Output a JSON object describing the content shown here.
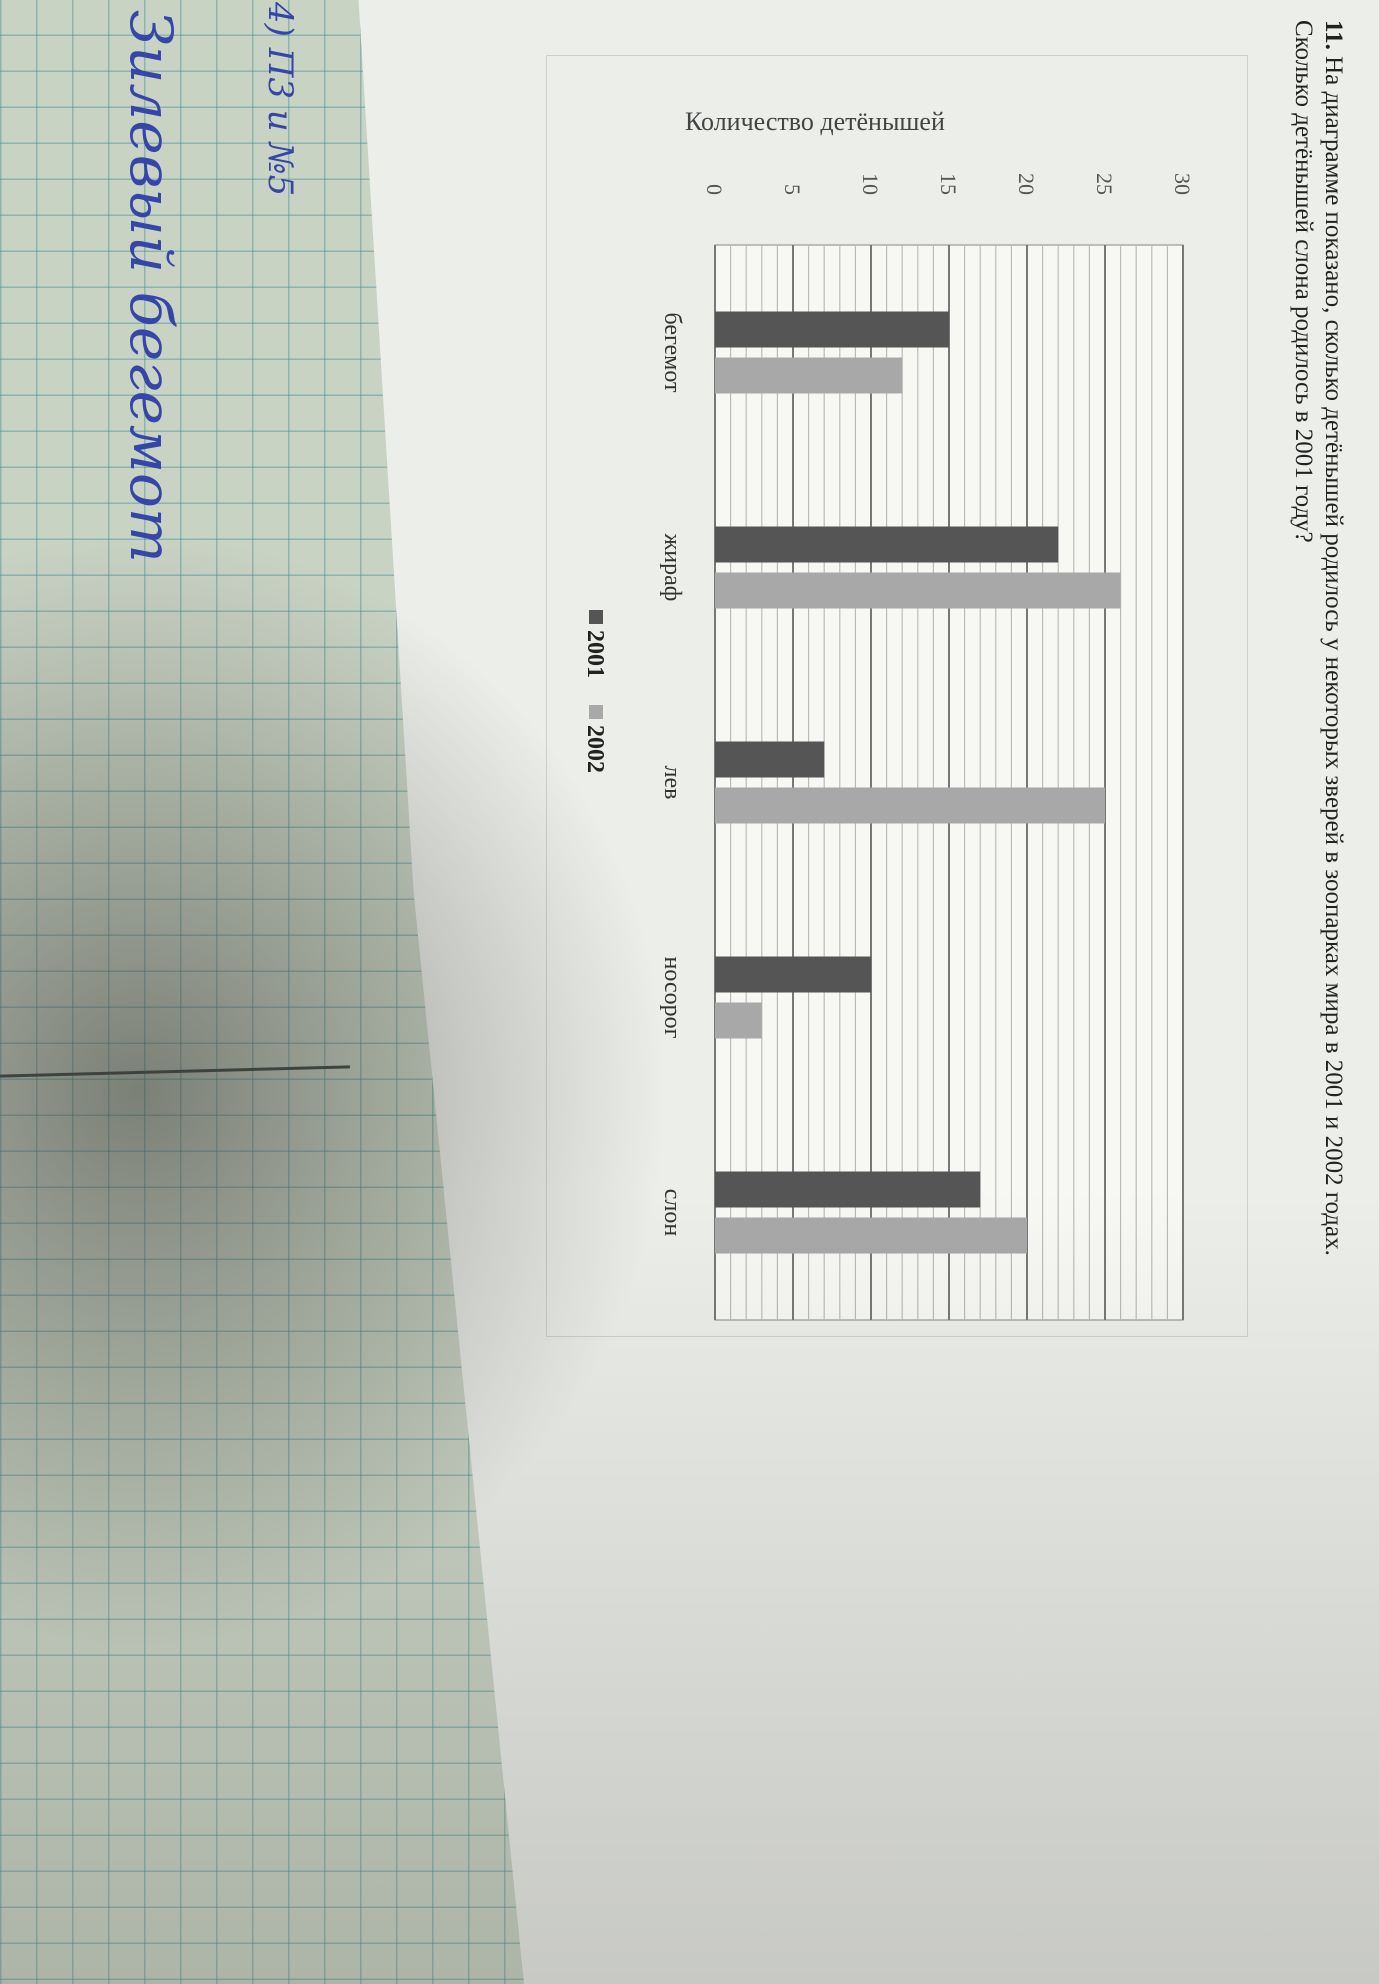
{
  "question": {
    "number": "11.",
    "text": "На диаграмме показано, сколько детёнышей родилось у некоторых зверей в зоопарках мира в 2001 и 2002 годах. Сколько детёнышей слона родилось в 2001 году?"
  },
  "handwriting": {
    "line1": "4) П3 и №5",
    "line2": "Зилевый бегемот"
  },
  "chart_data": {
    "type": "bar",
    "title": "",
    "xlabel": "",
    "ylabel": "Количество детёнышей",
    "categories": [
      "бегемот",
      "жираф",
      "лев",
      "носорог",
      "слон"
    ],
    "series": [
      {
        "name": "2001",
        "values": [
          15,
          22,
          7,
          10,
          17
        ],
        "color": "#555555"
      },
      {
        "name": "2002",
        "values": [
          12,
          26,
          25,
          3,
          20
        ],
        "color": "#a8a8a8"
      }
    ],
    "ylim": [
      0,
      30
    ],
    "yticks": [
      0,
      5,
      10,
      15,
      20,
      25,
      30
    ],
    "grid": true,
    "legend": "bottom"
  }
}
